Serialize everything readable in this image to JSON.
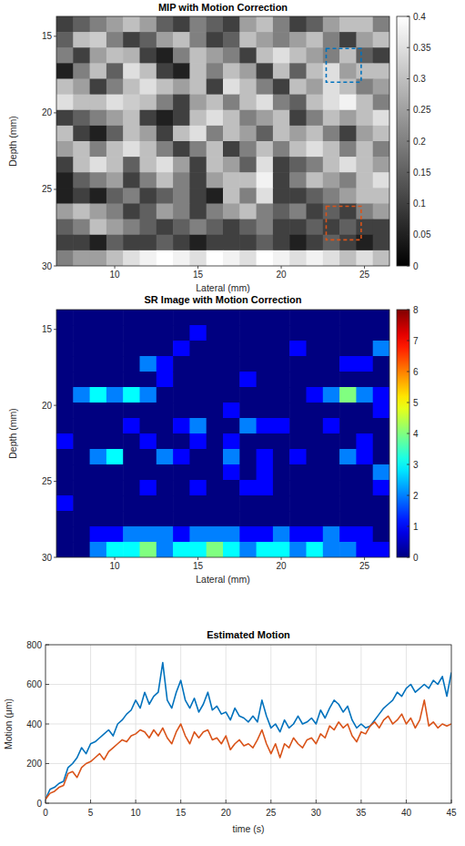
{
  "chart_data": [
    {
      "type": "heatmap",
      "title": "MIP with Motion Correction",
      "x_label": "Lateral (mm)",
      "y_label": "Depth (mm)",
      "xlim": [
        6.5,
        26.5
      ],
      "ylim": [
        13.7,
        30
      ],
      "xticks": [
        10,
        15,
        20,
        25
      ],
      "yticks": [
        15,
        20,
        25,
        30
      ],
      "color": "gray",
      "clim": [
        0,
        0.4
      ],
      "cticks": [
        0,
        0.05,
        0.1,
        0.15,
        0.2,
        0.25,
        0.3,
        0.35,
        0.4
      ],
      "regions": [
        {
          "color": "#0072BD",
          "x": [
            22.7,
            24.8
          ],
          "y": [
            15.8,
            18.0
          ]
        },
        {
          "color": "#D95319",
          "x": [
            22.7,
            24.8
          ],
          "y": [
            26.1,
            28.3
          ]
        }
      ],
      "cells": [
        [
          0.1,
          0.15,
          0.2,
          0.25,
          0.3,
          0.25,
          0.15,
          0.1,
          0.2,
          0.15,
          0.1,
          0.25,
          0.3,
          0.2,
          0.1,
          0.15,
          0.25,
          0.3,
          0.3,
          0.2
        ],
        [
          0.15,
          0.3,
          0.32,
          0.2,
          0.1,
          0.15,
          0.25,
          0.3,
          0.2,
          0.1,
          0.15,
          0.3,
          0.25,
          0.2,
          0.25,
          0.3,
          0.2,
          0.1,
          0.25,
          0.3
        ],
        [
          0.2,
          0.1,
          0.25,
          0.3,
          0.28,
          0.1,
          0.05,
          0.2,
          0.3,
          0.25,
          0.2,
          0.1,
          0.3,
          0.35,
          0.3,
          0.25,
          0.2,
          0.3,
          0.15,
          0.1
        ],
        [
          0.05,
          0.2,
          0.3,
          0.15,
          0.35,
          0.3,
          0.1,
          0.05,
          0.3,
          0.2,
          0.3,
          0.25,
          0.1,
          0.3,
          0.15,
          0.3,
          0.35,
          0.25,
          0.3,
          0.3
        ],
        [
          0.3,
          0.25,
          0.1,
          0.2,
          0.3,
          0.35,
          0.3,
          0.25,
          0.3,
          0.1,
          0.35,
          0.3,
          0.2,
          0.1,
          0.3,
          0.25,
          0.35,
          0.3,
          0.2,
          0.25
        ],
        [
          0.35,
          0.3,
          0.3,
          0.35,
          0.32,
          0.3,
          0.2,
          0.1,
          0.25,
          0.3,
          0.2,
          0.3,
          0.35,
          0.2,
          0.15,
          0.3,
          0.35,
          0.38,
          0.3,
          0.2
        ],
        [
          0.1,
          0.15,
          0.2,
          0.25,
          0.3,
          0.1,
          0.05,
          0.1,
          0.3,
          0.35,
          0.3,
          0.2,
          0.25,
          0.3,
          0.1,
          0.2,
          0.3,
          0.25,
          0.3,
          0.35
        ],
        [
          0.3,
          0.1,
          0.05,
          0.15,
          0.3,
          0.25,
          0.1,
          0.3,
          0.35,
          0.2,
          0.3,
          0.25,
          0.15,
          0.3,
          0.25,
          0.3,
          0.2,
          0.1,
          0.25,
          0.3
        ],
        [
          0.25,
          0.3,
          0.2,
          0.3,
          0.35,
          0.3,
          0.2,
          0.1,
          0.2,
          0.3,
          0.1,
          0.2,
          0.3,
          0.2,
          0.3,
          0.35,
          0.3,
          0.2,
          0.3,
          0.2
        ],
        [
          0.1,
          0.3,
          0.35,
          0.3,
          0.15,
          0.3,
          0.35,
          0.25,
          0.1,
          0.3,
          0.25,
          0.15,
          0.35,
          0.1,
          0.15,
          0.2,
          0.3,
          0.35,
          0.3,
          0.25
        ],
        [
          0.05,
          0.15,
          0.2,
          0.25,
          0.1,
          0.2,
          0.3,
          0.2,
          0.1,
          0.25,
          0.3,
          0.3,
          0.38,
          0.1,
          0.2,
          0.3,
          0.25,
          0.2,
          0.3,
          0.35
        ],
        [
          0.05,
          0.1,
          0.05,
          0.15,
          0.2,
          0.1,
          0.15,
          0.2,
          0.1,
          0.05,
          0.3,
          0.2,
          0.35,
          0.1,
          0.1,
          0.15,
          0.2,
          0.25,
          0.3,
          0.3
        ],
        [
          0.25,
          0.3,
          0.25,
          0.2,
          0.1,
          0.15,
          0.25,
          0.2,
          0.1,
          0.2,
          0.25,
          0.3,
          0.2,
          0.15,
          0.2,
          0.1,
          0.15,
          0.1,
          0.2,
          0.25
        ],
        [
          0.15,
          0.2,
          0.3,
          0.25,
          0.2,
          0.15,
          0.1,
          0.15,
          0.2,
          0.15,
          0.1,
          0.15,
          0.2,
          0.1,
          0.1,
          0.15,
          0.1,
          0.15,
          0.1,
          0.1
        ],
        [
          0.1,
          0.1,
          0.05,
          0.15,
          0.1,
          0.1,
          0.15,
          0.1,
          0.05,
          0.1,
          0.1,
          0.1,
          0.15,
          0.1,
          0.05,
          0.1,
          0.15,
          0.1,
          0.05,
          0.1
        ],
        [
          0.2,
          0.25,
          0.25,
          0.3,
          0.35,
          0.38,
          0.4,
          0.38,
          0.35,
          0.4,
          0.38,
          0.35,
          0.4,
          0.38,
          0.35,
          0.38,
          0.35,
          0.3,
          0.35,
          0.3
        ]
      ]
    },
    {
      "type": "heatmap",
      "title": "SR Image with Motion Correction",
      "x_label": "Lateral (mm)",
      "y_label": "Depth (mm)",
      "xlim": [
        6.5,
        26.5
      ],
      "ylim": [
        13.7,
        30
      ],
      "xticks": [
        10,
        15,
        20,
        25
      ],
      "yticks": [
        15,
        20,
        25,
        30
      ],
      "color": "jet",
      "clim": [
        0,
        8
      ],
      "cticks": [
        0,
        1,
        2,
        3,
        4,
        5,
        6,
        7,
        8
      ],
      "cells": [
        [
          0,
          0,
          0,
          0,
          0,
          0,
          0,
          0,
          0,
          0,
          0,
          0,
          0,
          0,
          0,
          0,
          0,
          0,
          0,
          0
        ],
        [
          0,
          0,
          0,
          0,
          0,
          0,
          0,
          0,
          1,
          0,
          0,
          0,
          0,
          0,
          0,
          0,
          0,
          0,
          0,
          0
        ],
        [
          0,
          0,
          0,
          0,
          0,
          0,
          0,
          1,
          0,
          0,
          0,
          0,
          0,
          0,
          1,
          0,
          0,
          0,
          0,
          2
        ],
        [
          0,
          0,
          0,
          0,
          0,
          2,
          1,
          0,
          0,
          0,
          0,
          0,
          0,
          0,
          0,
          0,
          0,
          1,
          1,
          0
        ],
        [
          0,
          0,
          0,
          0,
          0,
          0,
          1,
          0,
          0,
          0,
          0,
          1,
          0,
          0,
          0,
          0,
          0,
          0,
          0,
          0
        ],
        [
          0,
          2,
          3,
          2,
          3,
          2,
          0,
          0,
          0,
          0,
          0,
          0,
          0,
          0,
          0,
          1,
          2,
          4,
          2,
          1
        ],
        [
          0,
          0,
          0,
          0,
          0,
          0,
          0,
          0,
          0,
          0,
          1,
          0,
          0,
          0,
          0,
          0,
          0,
          0,
          0,
          1
        ],
        [
          0,
          0,
          0,
          0,
          1,
          0,
          0,
          1,
          2,
          0,
          0,
          2,
          1,
          1,
          0,
          0,
          1,
          0,
          0,
          0
        ],
        [
          1,
          0,
          0,
          0,
          0,
          1,
          0,
          0,
          1,
          0,
          1,
          0,
          0,
          0,
          0,
          0,
          0,
          0,
          1,
          0
        ],
        [
          0,
          0,
          2,
          3,
          0,
          0,
          2,
          1,
          0,
          0,
          2,
          0,
          1,
          0,
          1,
          0,
          0,
          2,
          1,
          0
        ],
        [
          0,
          0,
          0,
          0,
          0,
          0,
          0,
          0,
          0,
          0,
          1,
          0,
          1,
          0,
          0,
          0,
          0,
          0,
          0,
          2
        ],
        [
          0,
          0,
          0,
          0,
          0,
          1,
          0,
          0,
          1,
          0,
          0,
          1,
          1,
          0,
          0,
          0,
          0,
          0,
          0,
          1
        ],
        [
          1,
          0,
          0,
          0,
          0,
          0,
          0,
          0,
          0,
          0,
          0,
          0,
          0,
          0,
          0,
          0,
          0,
          0,
          0,
          0
        ],
        [
          0,
          0,
          0,
          0,
          0,
          0,
          0,
          0,
          0,
          0,
          0,
          0,
          0,
          0,
          0,
          0,
          0,
          0,
          0,
          0
        ],
        [
          0,
          0,
          1,
          1,
          2,
          2,
          2,
          1,
          2,
          2,
          2,
          1,
          1,
          2,
          1,
          1,
          2,
          1,
          1,
          0
        ],
        [
          0,
          0,
          2,
          3,
          3,
          4,
          2,
          3,
          3,
          4,
          3,
          2,
          3,
          3,
          2,
          3,
          2,
          2,
          1,
          1
        ]
      ]
    },
    {
      "type": "line",
      "title": "Estimated Motion",
      "x_label": "time (s)",
      "y_label": "Motion (μm)",
      "xlim": [
        0,
        45
      ],
      "ylim": [
        0,
        800
      ],
      "xticks": [
        0,
        5,
        10,
        15,
        20,
        25,
        30,
        35,
        40,
        45
      ],
      "yticks": [
        0,
        200,
        400,
        600,
        800
      ],
      "grid": true,
      "x": [
        0,
        0.5,
        1,
        1.5,
        2,
        2.5,
        3,
        3.5,
        4,
        4.5,
        5,
        5.5,
        6,
        6.5,
        7,
        7.5,
        8,
        8.5,
        9,
        9.5,
        10,
        10.5,
        11,
        11.5,
        12,
        12.5,
        13,
        13.5,
        14,
        14.5,
        15,
        15.5,
        16,
        16.5,
        17,
        17.5,
        18,
        18.5,
        19,
        19.5,
        20,
        20.5,
        21,
        21.5,
        22,
        22.5,
        23,
        23.5,
        24,
        24.5,
        25,
        25.5,
        26,
        26.5,
        27,
        27.5,
        28,
        28.5,
        29,
        29.5,
        30,
        30.5,
        31,
        31.5,
        32,
        32.5,
        33,
        33.5,
        34,
        34.5,
        35,
        35.5,
        36,
        36.5,
        37,
        37.5,
        38,
        38.5,
        39,
        39.5,
        40,
        40.5,
        41,
        41.5,
        42,
        42.5,
        43,
        43.5,
        44,
        44.5,
        45
      ],
      "series": [
        {
          "color": "#0072BD",
          "values": [
            20,
            70,
            80,
            100,
            110,
            180,
            200,
            230,
            280,
            250,
            300,
            310,
            330,
            350,
            370,
            340,
            400,
            420,
            450,
            470,
            520,
            480,
            560,
            500,
            540,
            560,
            710,
            520,
            480,
            560,
            620,
            520,
            480,
            530,
            460,
            500,
            560,
            470,
            490,
            450,
            460,
            420,
            480,
            440,
            430,
            410,
            440,
            410,
            520,
            440,
            380,
            400,
            360,
            420,
            380,
            400,
            440,
            400,
            410,
            430,
            400,
            470,
            430,
            480,
            520,
            500,
            460,
            490,
            420,
            380,
            400,
            380,
            390,
            420,
            450,
            480,
            500,
            520,
            560,
            540,
            580,
            600,
            560,
            580,
            600,
            580,
            620,
            600,
            640,
            540,
            660
          ]
        },
        {
          "color": "#D95319",
          "values": [
            20,
            50,
            60,
            80,
            90,
            150,
            160,
            130,
            180,
            200,
            210,
            230,
            250,
            220,
            260,
            280,
            300,
            320,
            310,
            340,
            350,
            370,
            360,
            330,
            370,
            340,
            380,
            330,
            300,
            360,
            400,
            340,
            300,
            360,
            330,
            360,
            370,
            320,
            330,
            300,
            340,
            270,
            300,
            320,
            290,
            300,
            280,
            320,
            370,
            300,
            250,
            300,
            230,
            300,
            280,
            330,
            300,
            280,
            320,
            330,
            300,
            350,
            330,
            390,
            370,
            410,
            380,
            400,
            340,
            310,
            360,
            350,
            390,
            410,
            380,
            420,
            440,
            400,
            420,
            450,
            400,
            430,
            380,
            420,
            520,
            390,
            410,
            380,
            400,
            390,
            400
          ]
        }
      ]
    }
  ]
}
